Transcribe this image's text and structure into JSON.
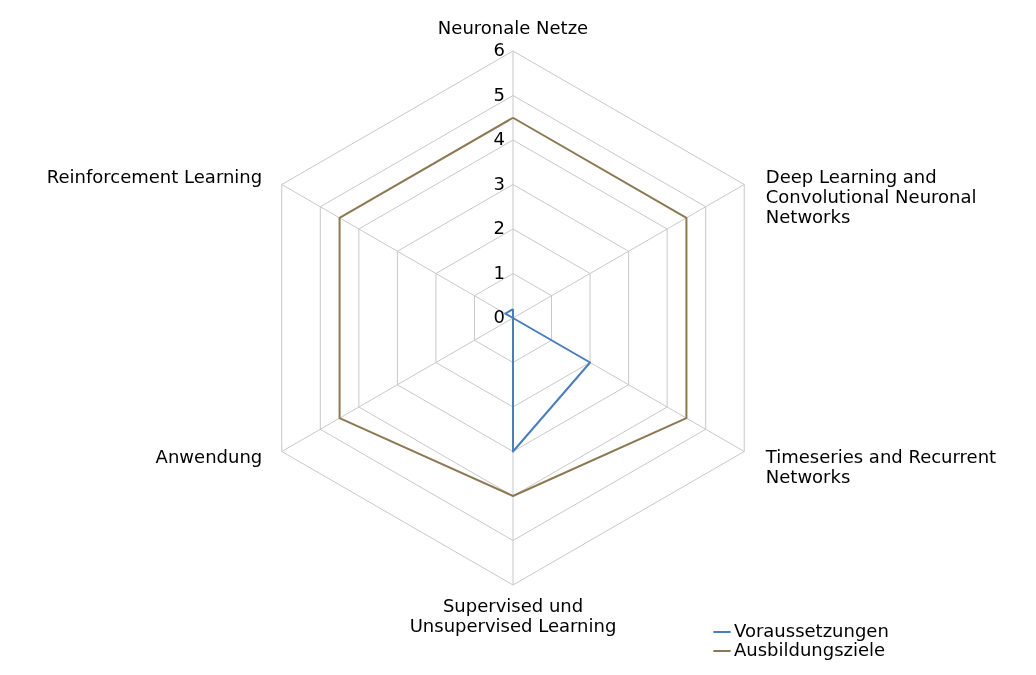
{
  "chart_data": {
    "type": "radar",
    "categories": [
      "Neuronale Netze",
      "Deep Learning and Convolutional Neuronal Networks",
      "Timeseries and Recurrent Networks",
      "Supervised und Unsupervised Learning",
      "Anwendung",
      "Reinforcement Learning"
    ],
    "series": [
      {
        "name": "Voraussetzungen",
        "color": "#4a7ebb",
        "values": [
          0.2,
          0,
          2,
          3,
          0,
          0.2
        ]
      },
      {
        "name": "Ausbildungsziele",
        "color": "#8c7853",
        "values": [
          4.5,
          4.5,
          4.5,
          4,
          4.5,
          4.5
        ]
      }
    ],
    "ylim": [
      0,
      6
    ],
    "yticks": [
      0,
      1,
      2,
      3,
      4,
      5,
      6
    ],
    "grid": true,
    "legend": "bottom right"
  }
}
